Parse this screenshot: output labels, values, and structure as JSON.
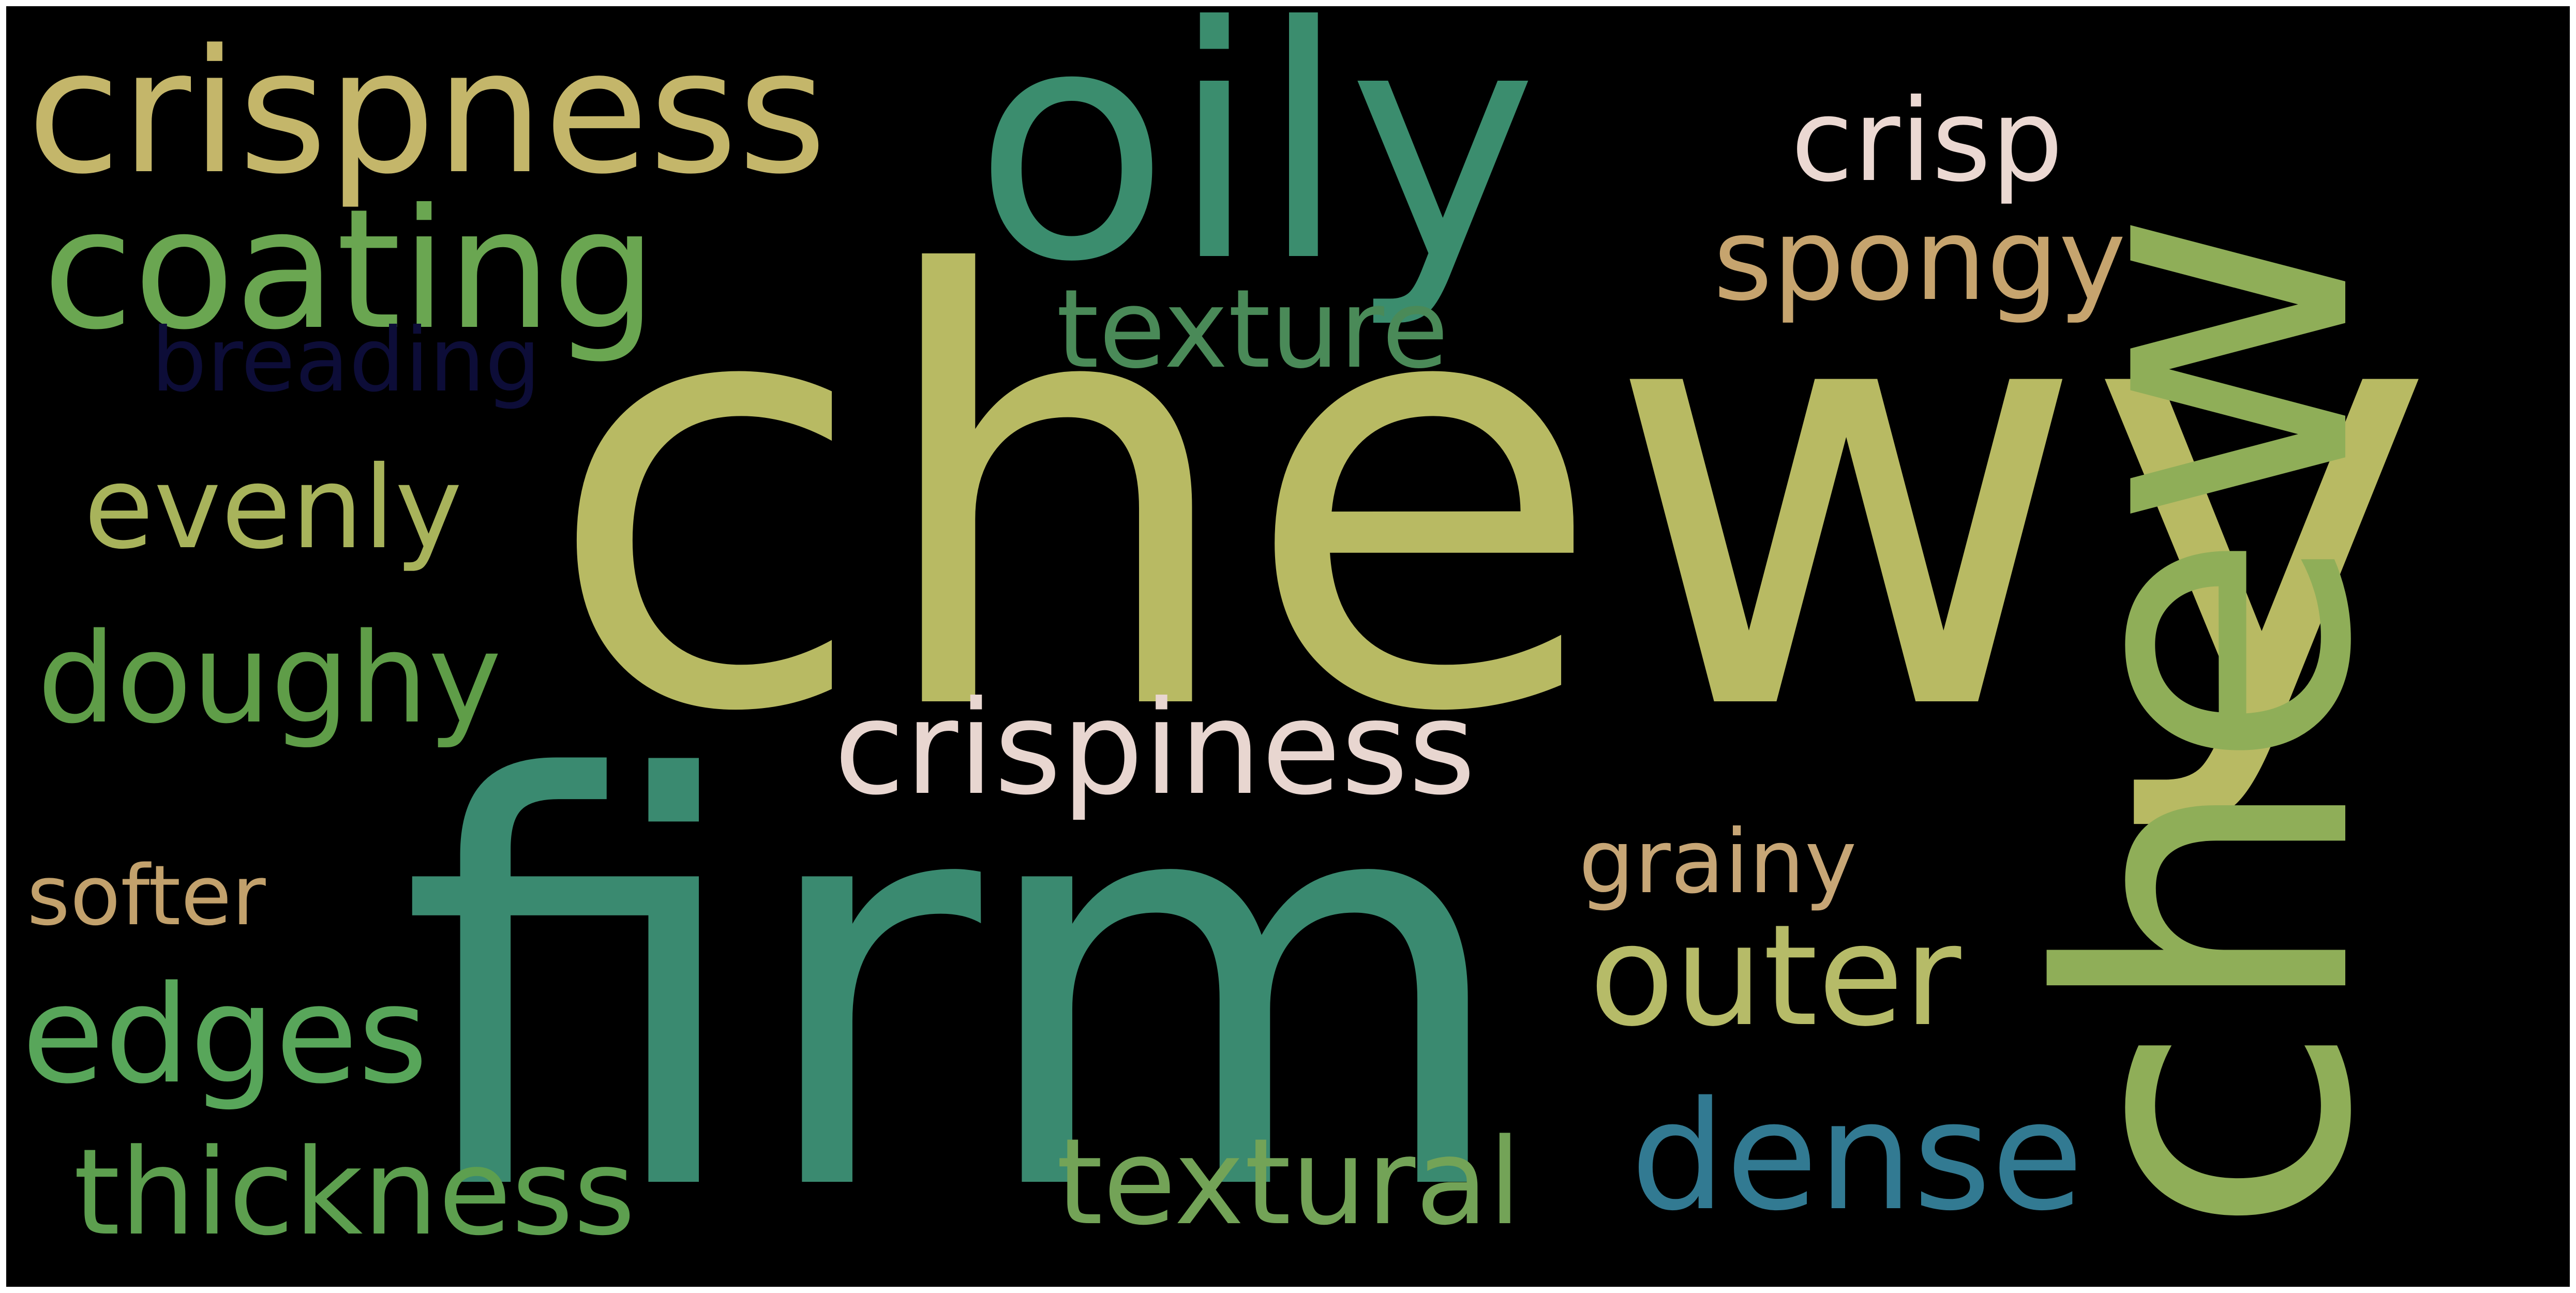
{
  "words": [
    {
      "key": "chewy",
      "text": "chewy",
      "color": "#b8ba63"
    },
    {
      "key": "firm",
      "text": "firm",
      "color": "#3a8a70"
    },
    {
      "key": "oily",
      "text": "oily",
      "color": "#3b8d6e"
    },
    {
      "key": "chew",
      "text": "chew",
      "color": "#8fae58"
    },
    {
      "key": "crispness",
      "text": "crispness",
      "color": "#c4b66a"
    },
    {
      "key": "coating",
      "text": "coating",
      "color": "#6aa651"
    },
    {
      "key": "crispiness",
      "text": "crispiness",
      "color": "#e8d6d0"
    },
    {
      "key": "outer",
      "text": "outer",
      "color": "#b6bb68"
    },
    {
      "key": "dense",
      "text": "dense",
      "color": "#327a92"
    },
    {
      "key": "edges",
      "text": "edges",
      "color": "#58a65a"
    },
    {
      "key": "doughy",
      "text": "doughy",
      "color": "#5f9d48"
    },
    {
      "key": "evenly",
      "text": "evenly",
      "color": "#a8b35b"
    },
    {
      "key": "thickness",
      "text": "thickness",
      "color": "#5d9f4f"
    },
    {
      "key": "textural",
      "text": "textural",
      "color": "#73a357"
    },
    {
      "key": "spongy",
      "text": "spongy",
      "color": "#c6a46e"
    },
    {
      "key": "crisp",
      "text": "crisp",
      "color": "#ebd8d2"
    },
    {
      "key": "texture",
      "text": "texture",
      "color": "#4a8a58"
    },
    {
      "key": "breading",
      "text": "breading",
      "color": "#0d0d38"
    },
    {
      "key": "grainy",
      "text": "grainy",
      "color": "#c7a676"
    },
    {
      "key": "softer",
      "text": "softer",
      "color": "#c2a16c"
    }
  ]
}
